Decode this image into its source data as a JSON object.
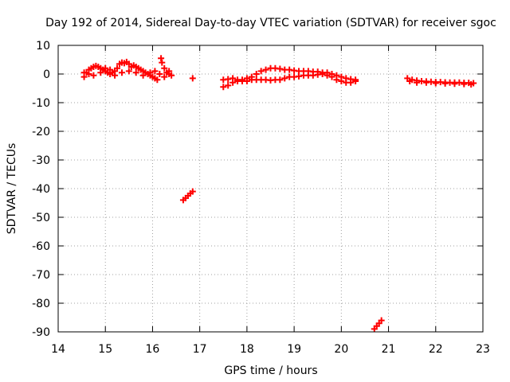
{
  "chart_data": {
    "type": "scatter",
    "title": "Day 192 of 2014, Sidereal Day-to-day VTEC variation (SDTVAR) for receiver sgoc",
    "xlabel": "GPS time / hours",
    "ylabel": "SDTVAR / TECUs",
    "xlim": [
      14,
      23
    ],
    "ylim": [
      -90,
      10
    ],
    "x_ticks": [
      "14",
      "15",
      "16",
      "17",
      "18",
      "19",
      "20",
      "21",
      "22",
      "23"
    ],
    "y_ticks": [
      "10",
      "0",
      "-10",
      "-20",
      "-30",
      "-40",
      "-50",
      "-60",
      "-70",
      "-80",
      "-90"
    ],
    "grid": true,
    "marker": "+",
    "color": "#ff0000",
    "series": [
      {
        "points": [
          [
            14.55,
            -1.0
          ],
          [
            14.6,
            0.5
          ],
          [
            14.65,
            1.5
          ],
          [
            14.7,
            2.0
          ],
          [
            14.75,
            2.5
          ],
          [
            14.8,
            2.8
          ],
          [
            14.85,
            2.5
          ],
          [
            14.9,
            2.0
          ],
          [
            14.95,
            1.5
          ],
          [
            15.0,
            1.0
          ],
          [
            15.05,
            0.5
          ],
          [
            15.1,
            0.0
          ],
          [
            15.15,
            0.5
          ],
          [
            15.2,
            1.0
          ],
          [
            15.25,
            2.0
          ],
          [
            15.3,
            3.5
          ],
          [
            15.35,
            4.0
          ],
          [
            15.4,
            3.8
          ],
          [
            15.45,
            4.2
          ],
          [
            15.5,
            3.5
          ],
          [
            15.55,
            2.5
          ],
          [
            15.6,
            3.0
          ],
          [
            15.65,
            2.5
          ],
          [
            15.7,
            2.0
          ],
          [
            15.75,
            1.5
          ],
          [
            15.8,
            1.0
          ],
          [
            15.85,
            0.5
          ],
          [
            15.9,
            0.0
          ],
          [
            15.95,
            -0.5
          ],
          [
            16.0,
            -1.0
          ],
          [
            16.05,
            -1.5
          ],
          [
            16.1,
            -2.0
          ],
          [
            16.15,
            0.0
          ],
          [
            16.18,
            5.5
          ],
          [
            16.2,
            4.0
          ],
          [
            16.25,
            2.0
          ],
          [
            16.3,
            0.5
          ],
          [
            16.35,
            0.0
          ],
          [
            16.4,
            -0.5
          ],
          [
            14.55,
            0.5
          ],
          [
            14.65,
            0.0
          ],
          [
            14.75,
            -0.5
          ],
          [
            14.9,
            0.5
          ],
          [
            15.0,
            2.0
          ],
          [
            15.1,
            1.5
          ],
          [
            15.2,
            -0.5
          ],
          [
            15.35,
            0.5
          ],
          [
            15.5,
            1.0
          ],
          [
            15.65,
            0.5
          ],
          [
            15.8,
            -0.5
          ],
          [
            15.95,
            0.5
          ],
          [
            16.05,
            1.0
          ],
          [
            16.25,
            -1.0
          ],
          [
            16.35,
            1.0
          ]
        ]
      },
      {
        "points": [
          [
            16.85,
            -1.5
          ]
        ]
      },
      {
        "points": [
          [
            16.65,
            -44.0
          ],
          [
            16.7,
            -43.3
          ],
          [
            16.75,
            -42.5
          ],
          [
            16.8,
            -41.7
          ],
          [
            16.85,
            -41.0
          ]
        ]
      },
      {
        "points": [
          [
            17.5,
            -4.5
          ],
          [
            17.6,
            -4.0
          ],
          [
            17.7,
            -3.0
          ],
          [
            17.8,
            -2.5
          ],
          [
            17.9,
            -2.0
          ],
          [
            18.0,
            -1.5
          ],
          [
            18.1,
            -1.0
          ],
          [
            18.2,
            0.0
          ],
          [
            18.3,
            1.0
          ],
          [
            18.4,
            1.5
          ],
          [
            18.5,
            2.0
          ],
          [
            18.6,
            2.0
          ],
          [
            18.7,
            1.8
          ],
          [
            18.8,
            1.5
          ],
          [
            18.9,
            1.5
          ],
          [
            19.0,
            1.2
          ],
          [
            19.1,
            1.0
          ],
          [
            19.2,
            1.0
          ],
          [
            19.3,
            1.0
          ],
          [
            19.4,
            0.8
          ],
          [
            19.5,
            0.8
          ],
          [
            19.6,
            0.5
          ],
          [
            19.7,
            0.5
          ],
          [
            19.8,
            0.0
          ],
          [
            19.9,
            -0.5
          ],
          [
            20.0,
            -1.0
          ],
          [
            20.1,
            -1.5
          ],
          [
            20.2,
            -1.8
          ],
          [
            20.3,
            -2.0
          ],
          [
            17.5,
            -2.0
          ],
          [
            17.6,
            -1.8
          ],
          [
            17.7,
            -1.5
          ],
          [
            17.8,
            -2.0
          ],
          [
            17.9,
            -2.5
          ],
          [
            18.0,
            -2.5
          ],
          [
            18.1,
            -2.0
          ],
          [
            18.2,
            -2.0
          ],
          [
            18.3,
            -2.0
          ],
          [
            18.4,
            -2.0
          ],
          [
            18.5,
            -2.2
          ],
          [
            18.6,
            -2.0
          ],
          [
            18.7,
            -2.0
          ],
          [
            18.8,
            -1.5
          ],
          [
            18.9,
            -1.0
          ],
          [
            19.0,
            -1.0
          ],
          [
            19.1,
            -0.8
          ],
          [
            19.2,
            -0.5
          ],
          [
            19.3,
            -0.5
          ],
          [
            19.4,
            -0.5
          ],
          [
            19.5,
            -0.2
          ],
          [
            19.6,
            0.0
          ],
          [
            19.7,
            -0.5
          ],
          [
            19.8,
            -1.0
          ],
          [
            19.9,
            -2.0
          ],
          [
            20.0,
            -2.5
          ],
          [
            20.1,
            -3.0
          ],
          [
            20.2,
            -3.0
          ],
          [
            20.3,
            -2.5
          ]
        ]
      },
      {
        "points": [
          [
            20.7,
            -89.0
          ],
          [
            20.75,
            -88.0
          ],
          [
            20.8,
            -87.0
          ],
          [
            20.85,
            -86.0
          ]
        ]
      },
      {
        "points": [
          [
            21.4,
            -1.5
          ],
          [
            21.5,
            -2.0
          ],
          [
            21.6,
            -2.3
          ],
          [
            21.7,
            -2.5
          ],
          [
            21.8,
            -2.6
          ],
          [
            21.9,
            -2.7
          ],
          [
            22.0,
            -2.8
          ],
          [
            22.1,
            -2.8
          ],
          [
            22.2,
            -2.9
          ],
          [
            22.3,
            -3.0
          ],
          [
            22.4,
            -3.0
          ],
          [
            22.5,
            -3.0
          ],
          [
            22.6,
            -3.1
          ],
          [
            22.7,
            -3.1
          ],
          [
            22.8,
            -3.2
          ],
          [
            21.45,
            -2.5
          ],
          [
            21.6,
            -3.0
          ],
          [
            21.8,
            -3.0
          ],
          [
            22.0,
            -3.2
          ],
          [
            22.2,
            -3.3
          ],
          [
            22.4,
            -3.4
          ],
          [
            22.6,
            -3.5
          ],
          [
            22.75,
            -3.6
          ]
        ]
      }
    ]
  }
}
